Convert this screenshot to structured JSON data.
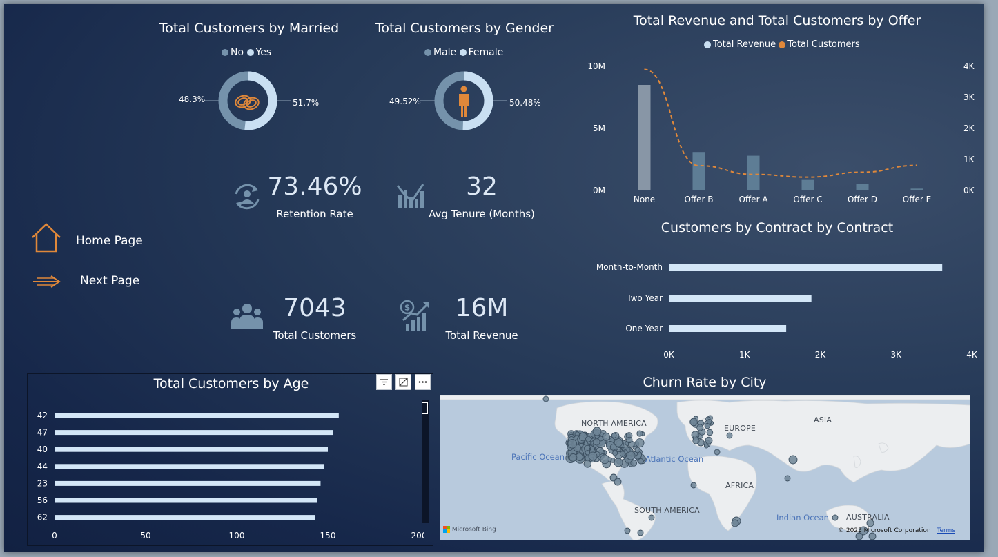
{
  "married": {
    "title": "Total Customers by Married",
    "legend": [
      {
        "label": "No",
        "color": "#7592ab"
      },
      {
        "label": "Yes",
        "color": "#c9dff2"
      }
    ],
    "left_pct": "48.3%",
    "right_pct": "51.7%",
    "values": [
      48.3,
      51.7
    ],
    "icon": "wedding-rings-icon"
  },
  "gender": {
    "title": "Total Customers by Gender",
    "legend": [
      {
        "label": "Male",
        "color": "#7592ab"
      },
      {
        "label": "Female",
        "color": "#c9dff2"
      }
    ],
    "left_pct": "49.52%",
    "right_pct": "50.48%",
    "values": [
      49.52,
      50.48
    ],
    "icon": "person-icon"
  },
  "kpis": {
    "retention": {
      "value": "73.46%",
      "label": "Retention Rate",
      "icon": "user-cycle-icon"
    },
    "tenure": {
      "value": "32",
      "label": "Avg Tenure (Months)",
      "icon": "bar-trend-icon"
    },
    "customers": {
      "value": "7043",
      "label": "Total Customers",
      "icon": "people-group-icon"
    },
    "revenue": {
      "value": "16M",
      "label": "Total Revenue",
      "icon": "money-growth-icon"
    }
  },
  "nav": {
    "home_label": "Home Page",
    "next_label": "Next Page"
  },
  "offer_chart_data": {
    "type": "bar",
    "title": "Total Revenue and Total Customers by Offer",
    "legend": [
      {
        "label": "Total Revenue",
        "color": "#c9dff2"
      },
      {
        "label": "Total Customers",
        "color": "#e0883a"
      }
    ],
    "categories": [
      "None",
      "Offer B",
      "Offer A",
      "Offer C",
      "Offer D",
      "Offer E"
    ],
    "y_left_ticks": [
      "10M",
      "5M",
      "0M"
    ],
    "y_right_ticks": [
      "4K",
      "3K",
      "2K",
      "1K",
      "0K"
    ],
    "ylim_left": [
      0,
      10000000
    ],
    "ylim_right": [
      0,
      4000
    ],
    "series": [
      {
        "name": "Total Revenue",
        "type": "bar",
        "values": [
          8500000,
          3100000,
          2800000,
          850000,
          550000,
          150000
        ]
      },
      {
        "name": "Total Customers",
        "type": "line",
        "values": [
          3900,
          800,
          520,
          430,
          590,
          810
        ]
      }
    ]
  },
  "contract_chart_data": {
    "type": "bar",
    "title": "Customers by Contract by Contract",
    "categories": [
      "Month-to-Month",
      "Two Year",
      "One Year"
    ],
    "values": [
      3610,
      1883,
      1550
    ],
    "x_ticks": [
      "0K",
      "1K",
      "2K",
      "3K",
      "4K"
    ],
    "xlim": [
      0,
      4000
    ],
    "bar_color": "#d3e6f7"
  },
  "age_chart_data": {
    "type": "bar",
    "title": "Total Customers by Age",
    "categories": [
      "42",
      "47",
      "40",
      "44",
      "23",
      "56",
      "62"
    ],
    "values": [
      156,
      153,
      150,
      148,
      146,
      144,
      143
    ],
    "x_ticks": [
      "0",
      "50",
      "100",
      "150",
      "200"
    ],
    "xlim": [
      0,
      200
    ],
    "bar_color": "#d3e6f7"
  },
  "city_map": {
    "title": "Churn Rate by City",
    "labels": {
      "north_america": "NORTH AMERICA",
      "europe": "EUROPE",
      "asia": "ASIA",
      "africa": "AFRICA",
      "south_america": "SOUTH AMERICA",
      "australia": "AUSTRALIA",
      "pacific": "Pacific Ocean",
      "atlantic": "Atlantic Ocean",
      "indian": "Indian Ocean"
    },
    "brand": "Microsoft Bing",
    "copyright": "© 2025 Microsoft Corporation",
    "terms": "Terms"
  }
}
